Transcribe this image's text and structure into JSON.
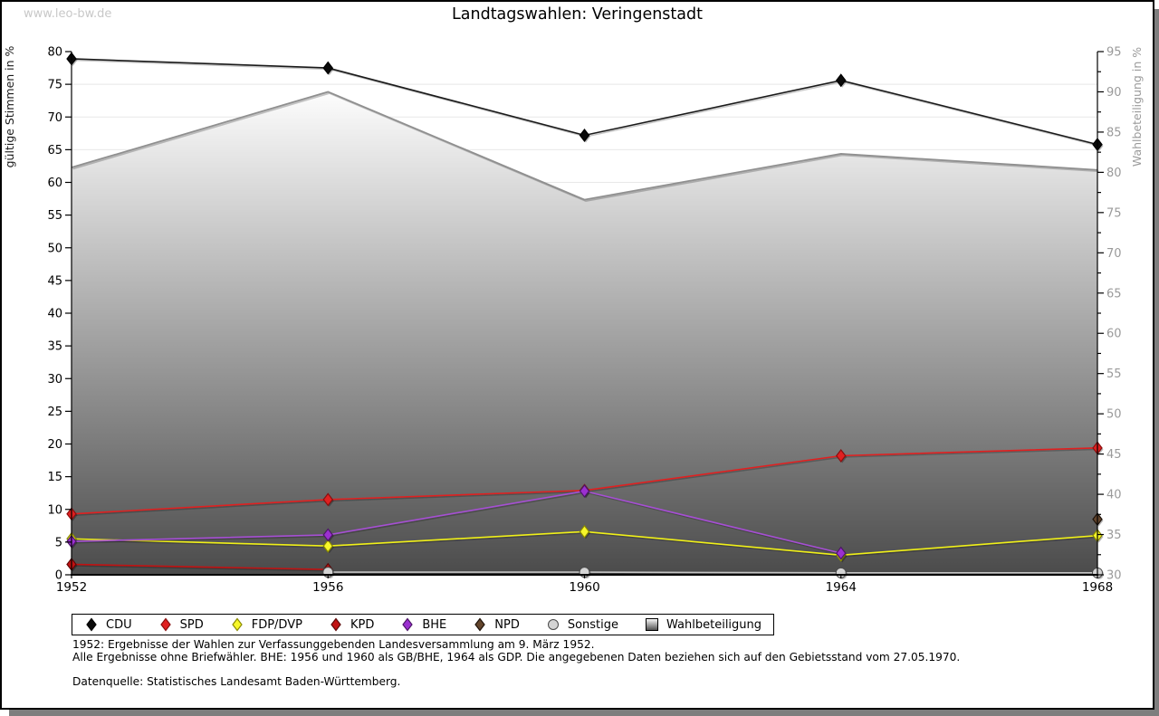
{
  "watermark": "www.leo-bw.de",
  "title": "Landtagswahlen: Veringenstadt",
  "chart_data": {
    "type": "line",
    "title": "Landtagswahlen: Veringenstadt",
    "x": [
      1952,
      1956,
      1960,
      1964,
      1968
    ],
    "xlabel": "",
    "ylabel": "gültige Stimmen in %",
    "ylabel_right": "Wahlbeteiligung in %",
    "ylim_left": [
      0,
      80
    ],
    "ylim_right": [
      30,
      95
    ],
    "tick_step": 5,
    "grid": true,
    "legend_position": "bottom",
    "series": [
      {
        "name": "CDU",
        "style": "line",
        "axis": "left",
        "marker": "diamond",
        "color": "#1a1a1a",
        "fill": "#0a0a0a",
        "edge": "#000000",
        "values": [
          78.9,
          77.5,
          67.2,
          75.6,
          65.8
        ]
      },
      {
        "name": "SPD",
        "style": "line",
        "axis": "left",
        "marker": "diamond",
        "color": "#e02020",
        "fill": "#e02020",
        "edge": "#8a0f0f",
        "values": [
          9.3,
          11.5,
          12.9,
          18.2,
          19.4
        ]
      },
      {
        "name": "FDP/DVP",
        "style": "line",
        "axis": "left",
        "marker": "diamond",
        "color": "#f0f018",
        "fill": "#f7f72a",
        "edge": "#8a8a00",
        "values": [
          5.5,
          4.4,
          6.6,
          3.0,
          6.0
        ]
      },
      {
        "name": "KPD",
        "style": "line",
        "axis": "left",
        "marker": "diamond",
        "color": "#c11212",
        "fill": "#c11212",
        "edge": "#5e0707",
        "values": [
          1.6,
          0.8,
          null,
          null,
          null
        ]
      },
      {
        "name": "BHE",
        "style": "line",
        "axis": "left",
        "marker": "diamond",
        "color": "#a64fd4",
        "fill": "#9b30d0",
        "edge": "#4d1668",
        "values": [
          5.1,
          6.1,
          12.8,
          3.3,
          null
        ]
      },
      {
        "name": "NPD",
        "style": "line",
        "axis": "left",
        "marker": "diamond",
        "color": "#63452c",
        "fill": "#63452c",
        "edge": "#1f130a",
        "values": [
          null,
          null,
          null,
          null,
          8.5
        ]
      },
      {
        "name": "Sonstige",
        "style": "line",
        "axis": "left",
        "marker": "circle",
        "color": "#c4c4c4",
        "fill": "#d4d4d4",
        "edge": "#4a4a4a",
        "values": [
          null,
          0.4,
          0.4,
          0.3,
          0.3
        ]
      },
      {
        "name": "Wahlbeteiligung",
        "style": "area",
        "axis": "right",
        "marker": "gradient-square",
        "color": "#8f8f8f",
        "fill": "#4b4b4b",
        "edge": "#8f8f8f",
        "values": [
          80.6,
          90.0,
          76.6,
          82.3,
          80.3
        ]
      }
    ]
  },
  "footnotes": {
    "line1": "1952: Ergebnisse der Wahlen zur Verfassunggebenden Landesversammlung am 9. März 1952.",
    "line2": "Alle Ergebnisse ohne Briefwähler. BHE: 1956 und 1960 als GB/BHE, 1964 als GDP. Die angegebenen Daten beziehen sich auf den Gebietsstand vom 27.05.1970.",
    "source": "Datenquelle: Statistisches Landesamt Baden-Württemberg."
  }
}
